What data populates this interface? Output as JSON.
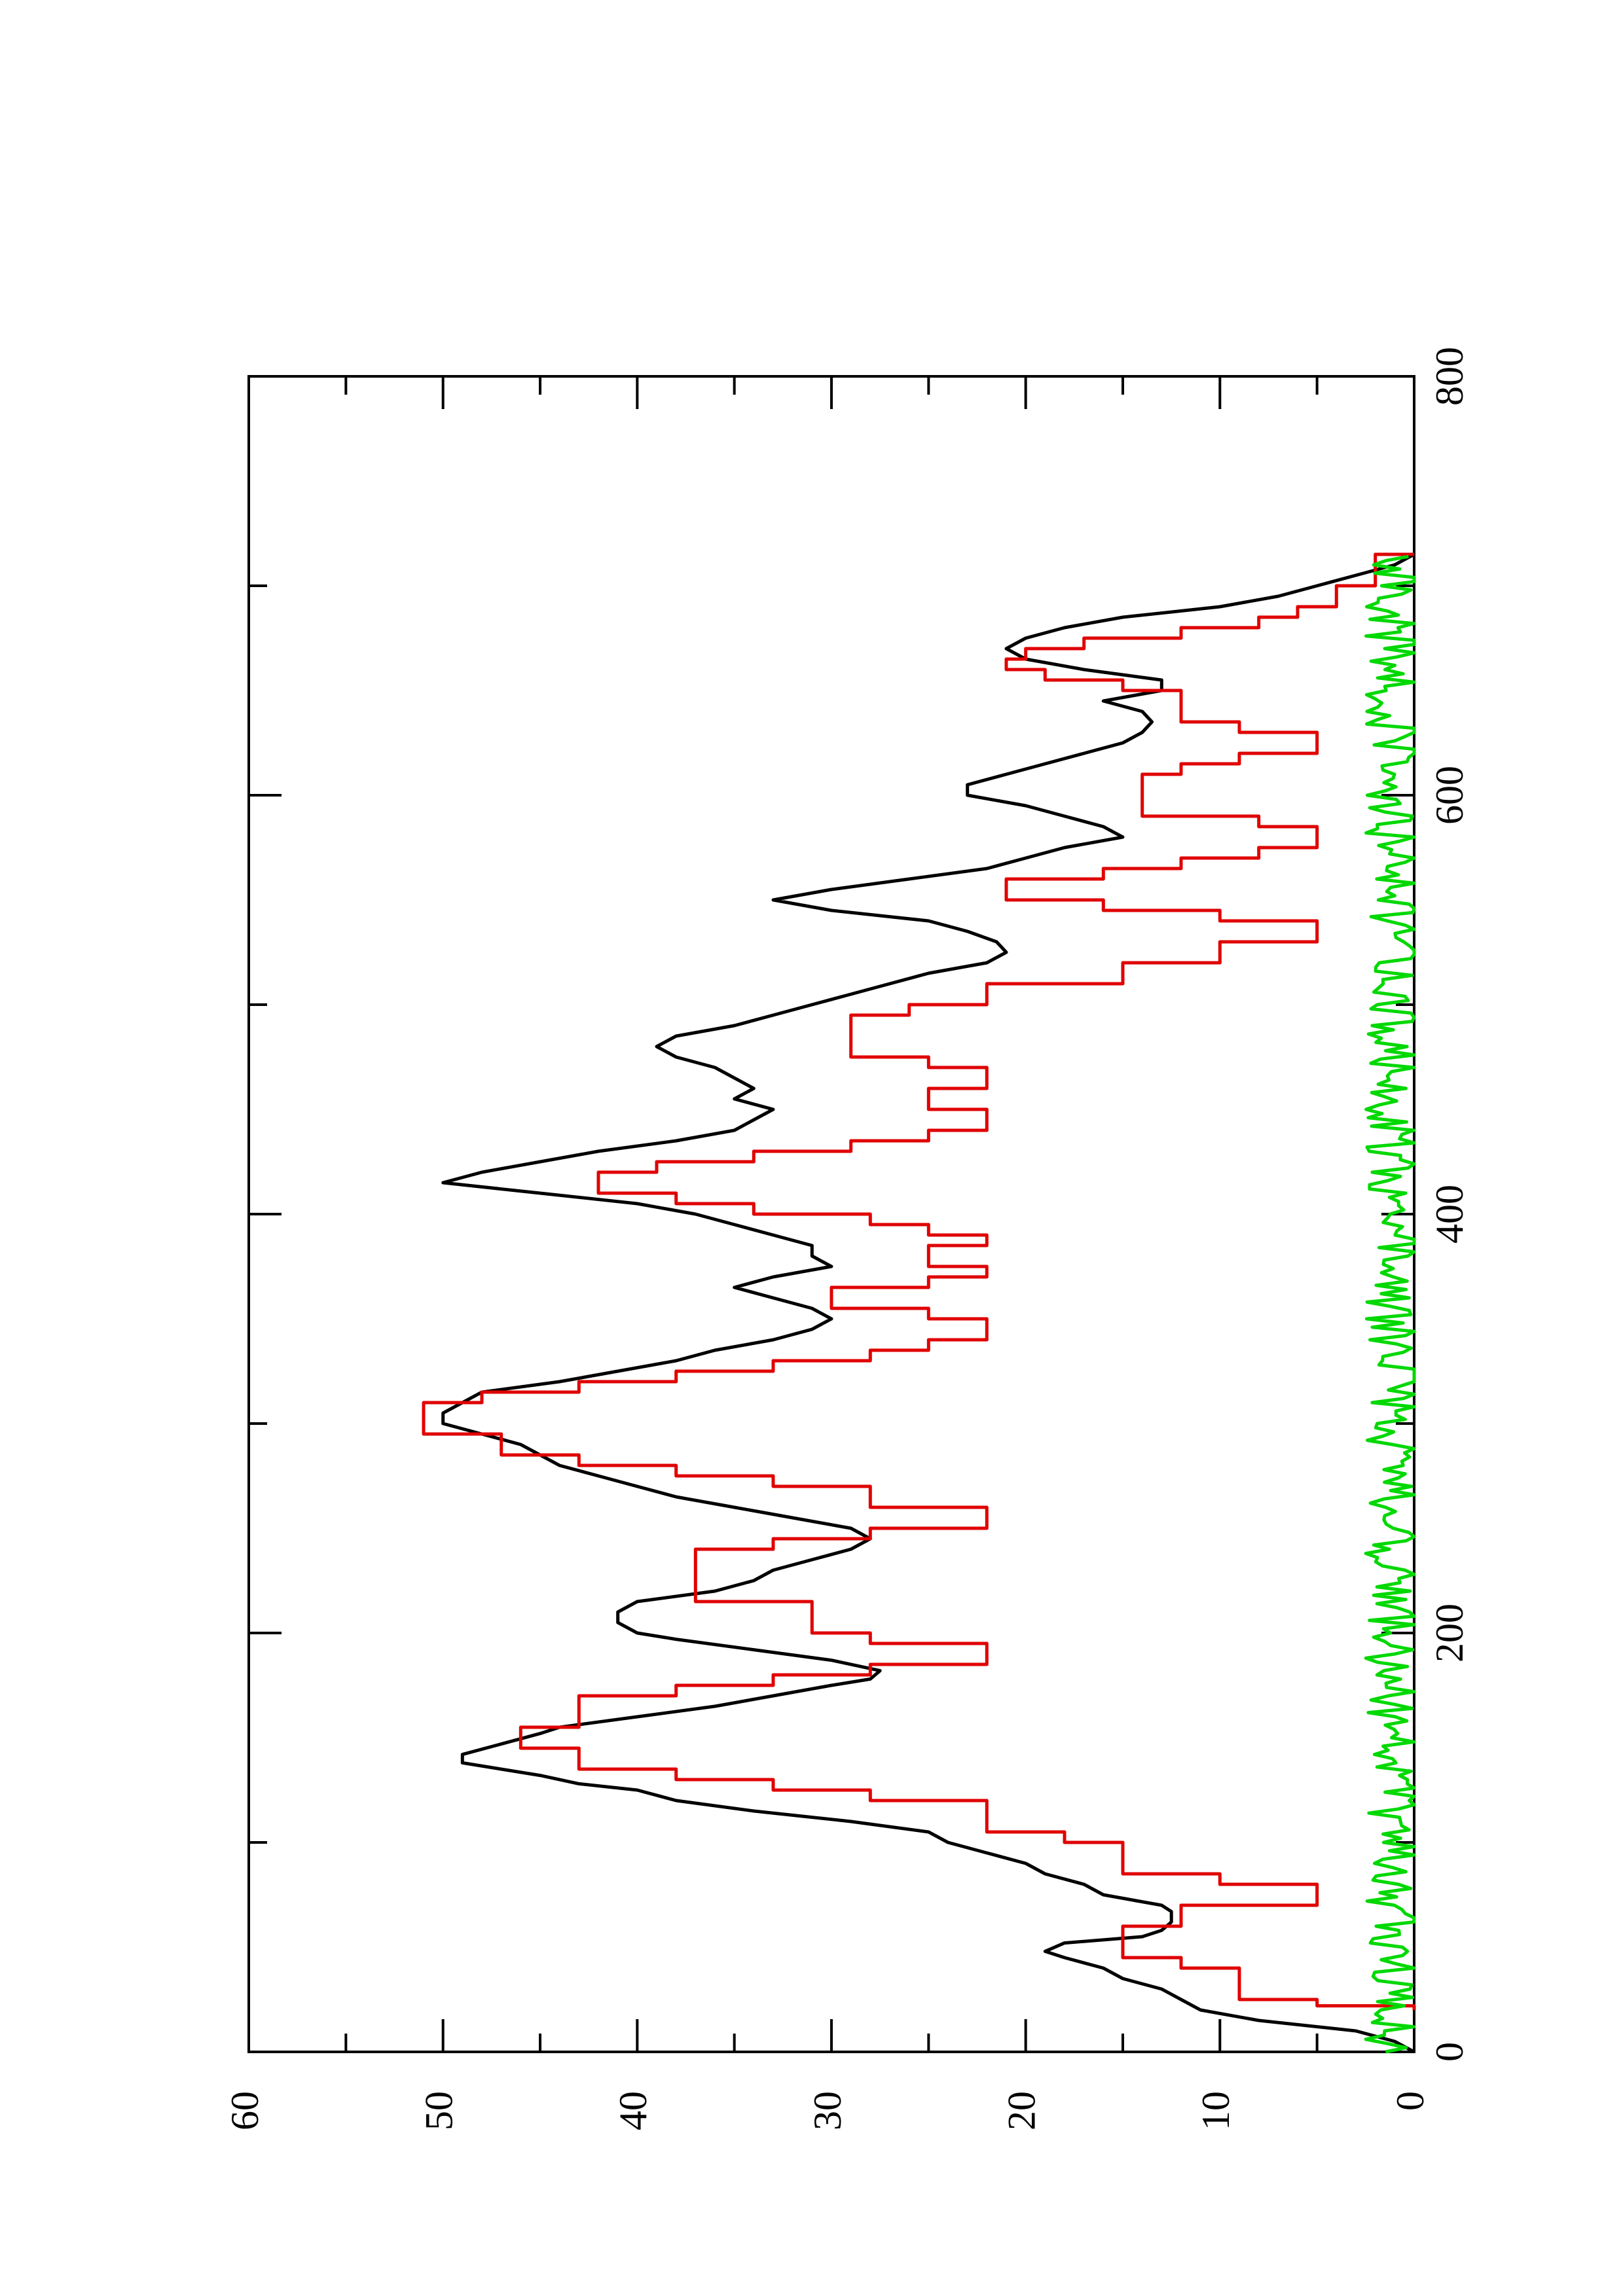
{
  "chart_data": {
    "type": "line",
    "orientation": "rotated-90-ccw",
    "title": "",
    "xlabel": "",
    "ylabel": "",
    "xlim": [
      0,
      800
    ],
    "ylim": [
      0,
      60
    ],
    "x_ticks": [
      "0",
      "200",
      "400",
      "600",
      "800"
    ],
    "y_ticks": [
      "0",
      "10",
      "20",
      "30",
      "40",
      "50",
      "60"
    ],
    "grid": false,
    "legend": "none",
    "series": [
      {
        "color": "#000000",
        "style": "smooth",
        "points": [
          [
            0,
            0
          ],
          [
            5,
            1
          ],
          [
            10,
            3
          ],
          [
            15,
            8
          ],
          [
            20,
            11
          ],
          [
            25,
            12
          ],
          [
            30,
            13
          ],
          [
            35,
            15
          ],
          [
            40,
            16
          ],
          [
            45,
            18
          ],
          [
            48,
            19
          ],
          [
            52,
            18
          ],
          [
            55,
            14
          ],
          [
            58,
            13
          ],
          [
            62,
            12.5
          ],
          [
            67,
            12.5
          ],
          [
            70,
            13
          ],
          [
            75,
            16
          ],
          [
            80,
            17
          ],
          [
            85,
            19
          ],
          [
            90,
            20
          ],
          [
            95,
            22
          ],
          [
            100,
            24
          ],
          [
            105,
            25
          ],
          [
            110,
            29
          ],
          [
            115,
            34
          ],
          [
            120,
            38
          ],
          [
            125,
            40
          ],
          [
            128,
            43
          ],
          [
            132,
            45
          ],
          [
            138,
            49
          ],
          [
            142,
            49
          ],
          [
            147,
            47
          ],
          [
            152,
            45
          ],
          [
            155,
            44
          ],
          [
            160,
            40
          ],
          [
            165,
            36
          ],
          [
            170,
            33
          ],
          [
            175,
            30
          ],
          [
            178,
            28
          ],
          [
            182,
            27.5
          ],
          [
            187,
            30
          ],
          [
            192,
            34
          ],
          [
            197,
            38
          ],
          [
            200,
            40
          ],
          [
            205,
            41
          ],
          [
            210,
            41
          ],
          [
            215,
            40
          ],
          [
            220,
            36
          ],
          [
            225,
            34
          ],
          [
            230,
            33
          ],
          [
            235,
            31
          ],
          [
            240,
            29
          ],
          [
            245,
            28
          ],
          [
            250,
            29
          ],
          [
            255,
            32
          ],
          [
            260,
            35
          ],
          [
            265,
            38
          ],
          [
            270,
            40
          ],
          [
            275,
            42
          ],
          [
            280,
            44
          ],
          [
            285,
            45
          ],
          [
            290,
            46
          ],
          [
            295,
            48
          ],
          [
            300,
            50
          ],
          [
            305,
            50
          ],
          [
            310,
            49
          ],
          [
            315,
            48
          ],
          [
            320,
            44
          ],
          [
            325,
            41
          ],
          [
            330,
            38
          ],
          [
            335,
            36
          ],
          [
            340,
            33
          ],
          [
            345,
            31
          ],
          [
            350,
            30
          ],
          [
            355,
            31
          ],
          [
            360,
            33
          ],
          [
            365,
            35
          ],
          [
            370,
            33
          ],
          [
            375,
            30
          ],
          [
            380,
            31
          ],
          [
            385,
            31
          ],
          [
            390,
            33
          ],
          [
            395,
            35
          ],
          [
            400,
            37
          ],
          [
            405,
            40
          ],
          [
            410,
            45
          ],
          [
            415,
            50
          ],
          [
            420,
            48
          ],
          [
            425,
            45
          ],
          [
            430,
            42
          ],
          [
            435,
            38
          ],
          [
            440,
            35
          ],
          [
            445,
            34
          ],
          [
            450,
            33
          ],
          [
            455,
            35
          ],
          [
            460,
            34
          ],
          [
            465,
            35
          ],
          [
            470,
            36
          ],
          [
            475,
            38
          ],
          [
            480,
            39
          ],
          [
            485,
            38
          ],
          [
            490,
            35
          ],
          [
            495,
            33
          ],
          [
            500,
            31
          ],
          [
            505,
            29
          ],
          [
            510,
            27
          ],
          [
            515,
            25
          ],
          [
            520,
            22
          ],
          [
            525,
            21
          ],
          [
            530,
            21.5
          ],
          [
            535,
            23
          ],
          [
            540,
            25
          ],
          [
            545,
            30
          ],
          [
            550,
            33
          ],
          [
            555,
            30
          ],
          [
            560,
            26
          ],
          [
            565,
            22
          ],
          [
            570,
            20
          ],
          [
            575,
            18
          ],
          [
            580,
            15
          ],
          [
            585,
            16
          ],
          [
            590,
            18
          ],
          [
            595,
            20
          ],
          [
            600,
            23
          ],
          [
            605,
            23
          ],
          [
            610,
            21
          ],
          [
            615,
            19
          ],
          [
            620,
            17
          ],
          [
            625,
            15
          ],
          [
            630,
            14
          ],
          [
            635,
            13.5
          ],
          [
            640,
            14
          ],
          [
            645,
            16
          ],
          [
            650,
            13
          ],
          [
            655,
            13
          ],
          [
            660,
            17
          ],
          [
            665,
            20
          ],
          [
            670,
            21
          ],
          [
            675,
            20
          ],
          [
            680,
            18
          ],
          [
            685,
            15
          ],
          [
            690,
            10
          ],
          [
            695,
            7
          ],
          [
            700,
            5
          ],
          [
            705,
            3
          ],
          [
            710,
            1
          ],
          [
            715,
            0
          ]
        ]
      },
      {
        "color": "#e00000",
        "style": "stepped",
        "points": [
          [
            20,
            0
          ],
          [
            22,
            5
          ],
          [
            25,
            9
          ],
          [
            35,
            9
          ],
          [
            40,
            12
          ],
          [
            45,
            15
          ],
          [
            55,
            15
          ],
          [
            60,
            12
          ],
          [
            65,
            12
          ],
          [
            70,
            5
          ],
          [
            75,
            5
          ],
          [
            80,
            10
          ],
          [
            85,
            15
          ],
          [
            95,
            15
          ],
          [
            100,
            18
          ],
          [
            105,
            22
          ],
          [
            115,
            22
          ],
          [
            120,
            28
          ],
          [
            125,
            33
          ],
          [
            130,
            38
          ],
          [
            135,
            43
          ],
          [
            140,
            43
          ],
          [
            145,
            46
          ],
          [
            150,
            46
          ],
          [
            155,
            43
          ],
          [
            165,
            43
          ],
          [
            170,
            38
          ],
          [
            175,
            33
          ],
          [
            180,
            28
          ],
          [
            185,
            22
          ],
          [
            190,
            22
          ],
          [
            195,
            28
          ],
          [
            200,
            31
          ],
          [
            210,
            31
          ],
          [
            215,
            37
          ],
          [
            235,
            37
          ],
          [
            240,
            33
          ],
          [
            245,
            28
          ],
          [
            250,
            22
          ],
          [
            255,
            22
          ],
          [
            260,
            28
          ],
          [
            270,
            33
          ],
          [
            275,
            38
          ],
          [
            280,
            43
          ],
          [
            285,
            47
          ],
          [
            290,
            47
          ],
          [
            295,
            51
          ],
          [
            305,
            51
          ],
          [
            310,
            48
          ],
          [
            315,
            43
          ],
          [
            320,
            38
          ],
          [
            325,
            33
          ],
          [
            330,
            28
          ],
          [
            335,
            25
          ],
          [
            340,
            22
          ],
          [
            345,
            22
          ],
          [
            350,
            25
          ],
          [
            355,
            30
          ],
          [
            360,
            30
          ],
          [
            365,
            25
          ],
          [
            370,
            22
          ],
          [
            375,
            25
          ],
          [
            385,
            22
          ],
          [
            390,
            25
          ],
          [
            395,
            28
          ],
          [
            400,
            34
          ],
          [
            405,
            38
          ],
          [
            410,
            42
          ],
          [
            415,
            42
          ],
          [
            420,
            39
          ],
          [
            425,
            34
          ],
          [
            430,
            29
          ],
          [
            435,
            25
          ],
          [
            440,
            22
          ],
          [
            445,
            22
          ],
          [
            450,
            25
          ],
          [
            455,
            25
          ],
          [
            460,
            22
          ],
          [
            465,
            22
          ],
          [
            470,
            25
          ],
          [
            475,
            29
          ],
          [
            485,
            29
          ],
          [
            490,
            29
          ],
          [
            495,
            26
          ],
          [
            500,
            22
          ],
          [
            510,
            15
          ],
          [
            520,
            10
          ],
          [
            530,
            5
          ],
          [
            535,
            5
          ],
          [
            540,
            10
          ],
          [
            545,
            16
          ],
          [
            550,
            21
          ],
          [
            555,
            21
          ],
          [
            560,
            16
          ],
          [
            565,
            12
          ],
          [
            570,
            8
          ],
          [
            575,
            5
          ],
          [
            580,
            5
          ],
          [
            585,
            8
          ],
          [
            590,
            14
          ],
          [
            600,
            14
          ],
          [
            605,
            14
          ],
          [
            610,
            12
          ],
          [
            615,
            9
          ],
          [
            620,
            5
          ],
          [
            625,
            5
          ],
          [
            630,
            9
          ],
          [
            635,
            12
          ],
          [
            645,
            12
          ],
          [
            650,
            15
          ],
          [
            655,
            19
          ],
          [
            660,
            21
          ],
          [
            665,
            20
          ],
          [
            670,
            17
          ],
          [
            675,
            12
          ],
          [
            680,
            8
          ],
          [
            685,
            6
          ],
          [
            690,
            4
          ],
          [
            700,
            2
          ],
          [
            715,
            0
          ]
        ]
      },
      {
        "color": "#00d800",
        "style": "noise",
        "base_level": 1,
        "amplitude": 1.5,
        "x_range": [
          0,
          715
        ]
      }
    ]
  }
}
